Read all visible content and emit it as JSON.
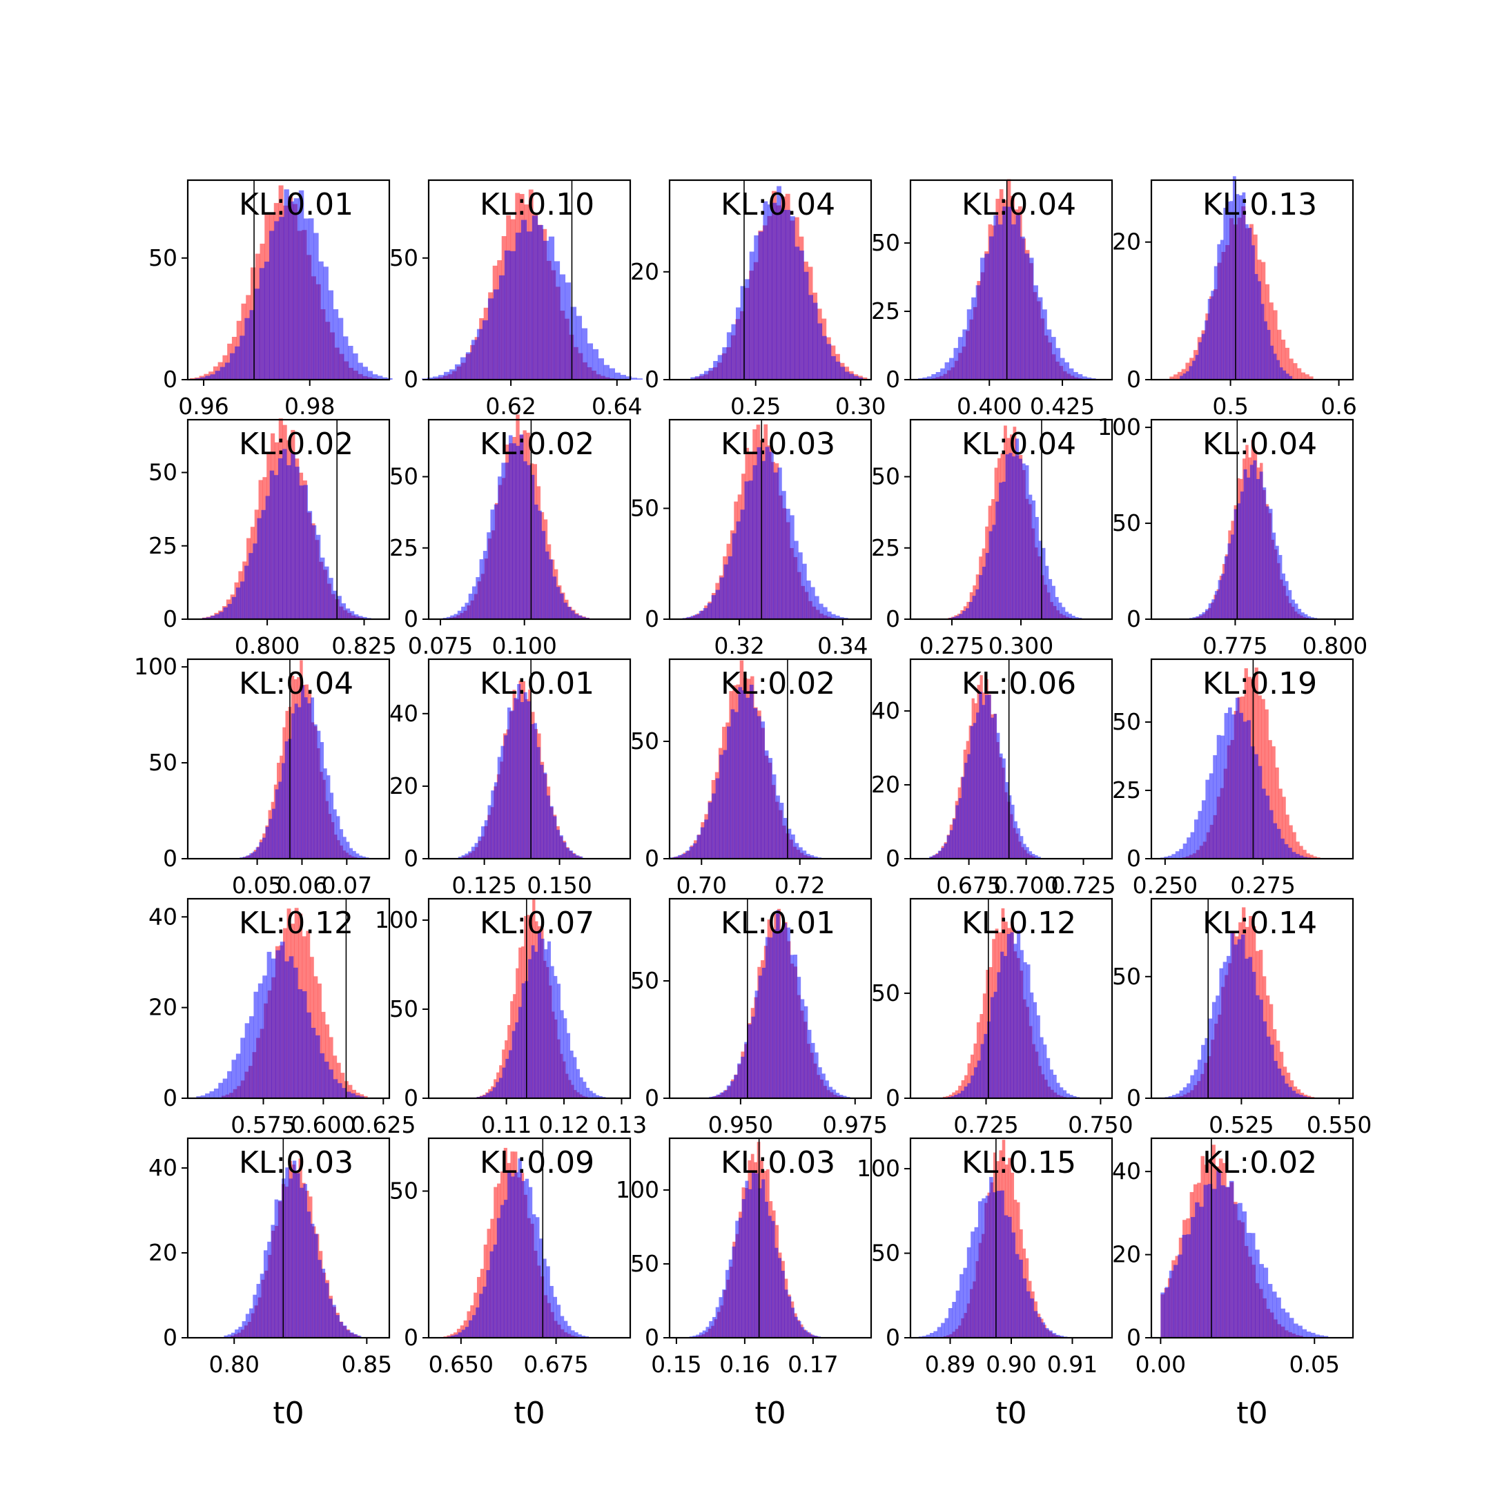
{
  "figure": {
    "colors": {
      "red": "#ff0000",
      "blue": "#0000ff",
      "overlap": "#7f3fbf",
      "vline": "#000000"
    },
    "xlabel": "t0"
  },
  "chart_data": [
    {
      "type": "histogram",
      "annotation": "KL:0.01",
      "x_range": [
        0.957,
        0.995
      ],
      "x_ticks": [
        0.96,
        0.98
      ],
      "x_tick_labels": [
        "0.96",
        "0.98"
      ],
      "y_range": [
        0,
        82
      ],
      "y_ticks": [
        0,
        50
      ],
      "y_tick_labels": [
        "0",
        "50"
      ],
      "vline": 0.9695,
      "series": [
        {
          "name": "red",
          "mean": 0.975,
          "sd": 0.0055,
          "peak": 76
        },
        {
          "name": "blue",
          "mean": 0.977,
          "sd": 0.0058,
          "peak": 76
        }
      ]
    },
    {
      "type": "histogram",
      "annotation": "KL:0.10",
      "x_range": [
        0.6045,
        0.6425
      ],
      "x_ticks": [
        0.62,
        0.64
      ],
      "x_tick_labels": [
        "0.62",
        "0.64"
      ],
      "y_range": [
        0,
        82
      ],
      "y_ticks": [
        0,
        50
      ],
      "y_tick_labels": [
        "0",
        "50"
      ],
      "vline": 0.6315,
      "series": [
        {
          "name": "red",
          "mean": 0.6225,
          "sd": 0.0053,
          "peak": 76
        },
        {
          "name": "blue",
          "mean": 0.624,
          "sd": 0.0065,
          "peak": 65
        }
      ]
    },
    {
      "type": "histogram",
      "annotation": "KL:0.04",
      "x_range": [
        0.209,
        0.305
      ],
      "x_ticks": [
        0.25,
        0.3
      ],
      "x_tick_labels": [
        "0.25",
        "0.30"
      ],
      "y_range": [
        0,
        37
      ],
      "y_ticks": [
        0,
        20
      ],
      "y_tick_labels": [
        "0",
        "20"
      ],
      "vline": 0.2445,
      "series": [
        {
          "name": "red",
          "mean": 0.262,
          "sd": 0.0135,
          "peak": 34
        },
        {
          "name": "blue",
          "mean": 0.26,
          "sd": 0.0135,
          "peak": 34
        }
      ]
    },
    {
      "type": "histogram",
      "annotation": "KL:0.04",
      "x_range": [
        0.373,
        0.442
      ],
      "x_ticks": [
        0.4,
        0.425
      ],
      "x_tick_labels": [
        "0.400",
        "0.425"
      ],
      "y_range": [
        0,
        73
      ],
      "y_ticks": [
        0,
        25,
        50
      ],
      "y_tick_labels": [
        "0",
        "25",
        "50"
      ],
      "vline": 0.406,
      "series": [
        {
          "name": "red",
          "mean": 0.406,
          "sd": 0.008,
          "peak": 70
        },
        {
          "name": "blue",
          "mean": 0.406,
          "sd": 0.0095,
          "peak": 62
        }
      ]
    },
    {
      "type": "histogram",
      "annotation": "KL:0.13",
      "x_range": [
        0.427,
        0.613
      ],
      "x_ticks": [
        0.5,
        0.6
      ],
      "x_tick_labels": [
        "0.5",
        "0.6"
      ],
      "y_range": [
        0,
        29
      ],
      "y_ticks": [
        0,
        20
      ],
      "y_tick_labels": [
        "0",
        "20"
      ],
      "vline": 0.5047,
      "series": [
        {
          "name": "red",
          "mean": 0.51,
          "sd": 0.023,
          "peak": 24
        },
        {
          "name": "blue",
          "mean": 0.505,
          "sd": 0.018,
          "peak": 28
        }
      ]
    },
    {
      "type": "histogram",
      "annotation": "KL:0.02",
      "x_range": [
        0.7795,
        0.8315
      ],
      "x_ticks": [
        0.8,
        0.825
      ],
      "x_tick_labels": [
        "0.800",
        "0.825"
      ],
      "y_range": [
        0,
        68
      ],
      "y_ticks": [
        0,
        25,
        50
      ],
      "y_tick_labels": [
        "0",
        "25",
        "50"
      ],
      "vline": 0.818,
      "series": [
        {
          "name": "red",
          "mean": 0.804,
          "sd": 0.0065,
          "peak": 66
        },
        {
          "name": "blue",
          "mean": 0.805,
          "sd": 0.0068,
          "peak": 56
        }
      ]
    },
    {
      "type": "histogram",
      "annotation": "KL:0.02",
      "x_range": [
        0.0715,
        0.1315
      ],
      "x_ticks": [
        0.075,
        0.1
      ],
      "x_tick_labels": [
        "0.075",
        "0.100"
      ],
      "y_range": [
        0,
        70
      ],
      "y_ticks": [
        0,
        25,
        50
      ],
      "y_tick_labels": [
        "0",
        "25",
        "50"
      ],
      "vline": 0.102,
      "series": [
        {
          "name": "red",
          "mean": 0.0985,
          "sd": 0.0065,
          "peak": 68
        },
        {
          "name": "blue",
          "mean": 0.0975,
          "sd": 0.0068,
          "peak": 63
        }
      ]
    },
    {
      "type": "histogram",
      "annotation": "KL:0.03",
      "x_range": [
        0.3065,
        0.3455
      ],
      "x_ticks": [
        0.32,
        0.34
      ],
      "x_tick_labels": [
        "0.32",
        "0.34"
      ],
      "y_range": [
        0,
        90
      ],
      "y_ticks": [
        0,
        50
      ],
      "y_tick_labels": [
        "0",
        "50"
      ],
      "vline": 0.3243,
      "series": [
        {
          "name": "red",
          "mean": 0.324,
          "sd": 0.0045,
          "peak": 86
        },
        {
          "name": "blue",
          "mean": 0.325,
          "sd": 0.005,
          "peak": 76
        }
      ]
    },
    {
      "type": "histogram",
      "annotation": "KL:0.04",
      "x_range": [
        0.26,
        0.333
      ],
      "x_ticks": [
        0.275,
        0.3
      ],
      "x_tick_labels": [
        "0.275",
        "0.300"
      ],
      "y_range": [
        0,
        70
      ],
      "y_ticks": [
        0,
        25,
        50
      ],
      "y_tick_labels": [
        "0",
        "25",
        "50"
      ],
      "vline": 0.3075,
      "series": [
        {
          "name": "red",
          "mean": 0.296,
          "sd": 0.007,
          "peak": 66
        },
        {
          "name": "blue",
          "mean": 0.298,
          "sd": 0.0075,
          "peak": 60
        }
      ]
    },
    {
      "type": "histogram",
      "annotation": "KL:0.04",
      "x_range": [
        0.754,
        0.8045
      ],
      "x_ticks": [
        0.775,
        0.8
      ],
      "x_tick_labels": [
        "0.775",
        "0.800"
      ],
      "y_range": [
        0,
        104
      ],
      "y_ticks": [
        0,
        50,
        100
      ],
      "y_tick_labels": [
        "0",
        "50",
        "100"
      ],
      "vline": 0.7755,
      "series": [
        {
          "name": "red",
          "mean": 0.779,
          "sd": 0.0045,
          "peak": 90
        },
        {
          "name": "blue",
          "mean": 0.7795,
          "sd": 0.005,
          "peak": 80
        }
      ]
    },
    {
      "type": "histogram",
      "annotation": "KL:0.04",
      "x_range": [
        0.0345,
        0.0795
      ],
      "x_ticks": [
        0.05,
        0.06,
        0.07
      ],
      "x_tick_labels": [
        "0.05",
        "0.06",
        "0.07"
      ],
      "y_range": [
        0,
        104
      ],
      "y_ticks": [
        0,
        50,
        100
      ],
      "y_tick_labels": [
        "0",
        "50",
        "100"
      ],
      "vline": 0.0573,
      "series": [
        {
          "name": "red",
          "mean": 0.0595,
          "sd": 0.004,
          "peak": 98
        },
        {
          "name": "blue",
          "mean": 0.0605,
          "sd": 0.0045,
          "peak": 86
        }
      ]
    },
    {
      "type": "histogram",
      "annotation": "KL:0.01",
      "x_range": [
        0.1065,
        0.1735
      ],
      "x_ticks": [
        0.125,
        0.15
      ],
      "x_tick_labels": [
        "0.125",
        "0.150"
      ],
      "y_range": [
        0,
        55
      ],
      "y_ticks": [
        0,
        20,
        40
      ],
      "y_tick_labels": [
        "0",
        "20",
        "40"
      ],
      "vline": 0.1405,
      "series": [
        {
          "name": "red",
          "mean": 0.1375,
          "sd": 0.0065,
          "peak": 48
        },
        {
          "name": "blue",
          "mean": 0.137,
          "sd": 0.0068,
          "peak": 46
        }
      ]
    },
    {
      "type": "histogram",
      "annotation": "KL:0.02",
      "x_range": [
        0.6935,
        0.7345
      ],
      "x_ticks": [
        0.7,
        0.72
      ],
      "x_tick_labels": [
        "0.70",
        "0.72"
      ],
      "y_range": [
        0,
        85
      ],
      "y_ticks": [
        0,
        50
      ],
      "y_tick_labels": [
        "0",
        "50"
      ],
      "vline": 0.7175,
      "series": [
        {
          "name": "red",
          "mean": 0.7085,
          "sd": 0.0045,
          "peak": 80
        },
        {
          "name": "blue",
          "mean": 0.709,
          "sd": 0.0048,
          "peak": 72
        }
      ]
    },
    {
      "type": "histogram",
      "annotation": "KL:0.06",
      "x_range": [
        0.6495,
        0.7375
      ],
      "x_ticks": [
        0.675,
        0.7,
        0.725
      ],
      "x_tick_labels": [
        "0.675",
        "0.700",
        "0.725"
      ],
      "y_range": [
        0,
        54
      ],
      "y_ticks": [
        0,
        20,
        40
      ],
      "y_tick_labels": [
        "0",
        "20",
        "40"
      ],
      "vline": 0.6925,
      "series": [
        {
          "name": "red",
          "mean": 0.681,
          "sd": 0.0075,
          "peak": 48
        },
        {
          "name": "blue",
          "mean": 0.682,
          "sd": 0.008,
          "peak": 44
        }
      ]
    },
    {
      "type": "histogram",
      "annotation": "KL:0.19",
      "x_range": [
        0.2465,
        0.298
      ],
      "x_ticks": [
        0.25,
        0.275
      ],
      "x_tick_labels": [
        "0.250",
        "0.275"
      ],
      "y_range": [
        0,
        73
      ],
      "y_ticks": [
        0,
        25,
        50
      ],
      "y_tick_labels": [
        "0",
        "25",
        "50"
      ],
      "vline": 0.2725,
      "series": [
        {
          "name": "red",
          "mean": 0.272,
          "sd": 0.0055,
          "peak": 68
        },
        {
          "name": "blue",
          "mean": 0.268,
          "sd": 0.006,
          "peak": 56
        }
      ]
    },
    {
      "type": "histogram",
      "annotation": "KL:0.12",
      "x_range": [
        0.5435,
        0.6275
      ],
      "x_ticks": [
        0.575,
        0.6,
        0.625
      ],
      "x_tick_labels": [
        "0.575",
        "0.600",
        "0.625"
      ],
      "y_range": [
        0,
        44
      ],
      "y_ticks": [
        0,
        20,
        40
      ],
      "y_tick_labels": [
        "0",
        "20",
        "40"
      ],
      "vline": 0.6095,
      "series": [
        {
          "name": "red",
          "mean": 0.588,
          "sd": 0.01,
          "peak": 41
        },
        {
          "name": "blue",
          "mean": 0.582,
          "sd": 0.0115,
          "peak": 33
        }
      ]
    },
    {
      "type": "histogram",
      "annotation": "KL:0.07",
      "x_range": [
        0.0965,
        0.1315
      ],
      "x_ticks": [
        0.11,
        0.12,
        0.13
      ],
      "x_tick_labels": [
        "0.11",
        "0.12",
        "0.13"
      ],
      "y_range": [
        0,
        112
      ],
      "y_ticks": [
        0,
        50,
        100
      ],
      "y_tick_labels": [
        "0",
        "50",
        "100"
      ],
      "vline": 0.1135,
      "series": [
        {
          "name": "red",
          "mean": 0.1145,
          "sd": 0.003,
          "peak": 106
        },
        {
          "name": "blue",
          "mean": 0.116,
          "sd": 0.0035,
          "peak": 90
        }
      ]
    },
    {
      "type": "histogram",
      "annotation": "KL:0.01",
      "x_range": [
        0.9345,
        0.9785
      ],
      "x_ticks": [
        0.95,
        0.975
      ],
      "x_tick_labels": [
        "0.950",
        "0.975"
      ],
      "y_range": [
        0,
        85
      ],
      "y_ticks": [
        0,
        50
      ],
      "y_tick_labels": [
        "0",
        "50"
      ],
      "vline": 0.9515,
      "series": [
        {
          "name": "red",
          "mean": 0.958,
          "sd": 0.0045,
          "peak": 78
        },
        {
          "name": "blue",
          "mean": 0.9585,
          "sd": 0.0048,
          "peak": 76
        }
      ]
    },
    {
      "type": "histogram",
      "annotation": "KL:0.12",
      "x_range": [
        0.7085,
        0.7525
      ],
      "x_ticks": [
        0.725,
        0.75
      ],
      "x_tick_labels": [
        "0.725",
        "0.750"
      ],
      "y_range": [
        0,
        95
      ],
      "y_ticks": [
        0,
        50
      ],
      "y_tick_labels": [
        "0",
        "50"
      ],
      "vline": 0.7255,
      "series": [
        {
          "name": "red",
          "mean": 0.729,
          "sd": 0.0042,
          "peak": 86
        },
        {
          "name": "blue",
          "mean": 0.731,
          "sd": 0.0045,
          "peak": 78
        }
      ]
    },
    {
      "type": "histogram",
      "annotation": "KL:0.14",
      "x_range": [
        0.502,
        0.5535
      ],
      "x_ticks": [
        0.525,
        0.55
      ],
      "x_tick_labels": [
        "0.525",
        "0.550"
      ],
      "y_range": [
        0,
        82
      ],
      "y_ticks": [
        0,
        50
      ],
      "y_tick_labels": [
        "0",
        "50"
      ],
      "vline": 0.5165,
      "series": [
        {
          "name": "red",
          "mean": 0.526,
          "sd": 0.0055,
          "peak": 75
        },
        {
          "name": "blue",
          "mean": 0.524,
          "sd": 0.0058,
          "peak": 66
        }
      ]
    },
    {
      "type": "histogram",
      "annotation": "KL:0.03",
      "x_range": [
        0.7825,
        0.8585
      ],
      "x_ticks": [
        0.8,
        0.85
      ],
      "x_tick_labels": [
        "0.80",
        "0.85"
      ],
      "y_range": [
        0,
        47
      ],
      "y_ticks": [
        0,
        20,
        40
      ],
      "y_tick_labels": [
        "0",
        "20",
        "40"
      ],
      "vline": 0.8185,
      "series": [
        {
          "name": "red",
          "mean": 0.823,
          "sd": 0.008,
          "peak": 41
        },
        {
          "name": "blue",
          "mean": 0.822,
          "sd": 0.0085,
          "peak": 40
        }
      ]
    },
    {
      "type": "histogram",
      "annotation": "KL:0.09",
      "x_range": [
        0.6415,
        0.6945
      ],
      "x_ticks": [
        0.65,
        0.675
      ],
      "x_tick_labels": [
        "0.650",
        "0.675"
      ],
      "y_range": [
        0,
        68
      ],
      "y_ticks": [
        0,
        50
      ],
      "y_tick_labels": [
        "0",
        "50"
      ],
      "vline": 0.6715,
      "series": [
        {
          "name": "red",
          "mean": 0.663,
          "sd": 0.0055,
          "peak": 63
        },
        {
          "name": "blue",
          "mean": 0.665,
          "sd": 0.0058,
          "peak": 58
        }
      ]
    },
    {
      "type": "histogram",
      "annotation": "KL:0.03",
      "x_range": [
        0.149,
        0.1785
      ],
      "x_ticks": [
        0.15,
        0.16,
        0.17
      ],
      "x_tick_labels": [
        "0.15",
        "0.16",
        "0.17"
      ],
      "y_range": [
        0,
        135
      ],
      "y_ticks": [
        0,
        50,
        100
      ],
      "y_tick_labels": [
        "0",
        "50",
        "100"
      ],
      "vline": 0.1621,
      "series": [
        {
          "name": "red",
          "mean": 0.1618,
          "sd": 0.0028,
          "peak": 126
        },
        {
          "name": "blue",
          "mean": 0.1615,
          "sd": 0.003,
          "peak": 110
        }
      ]
    },
    {
      "type": "histogram",
      "annotation": "KL:0.15",
      "x_range": [
        0.8835,
        0.9165
      ],
      "x_ticks": [
        0.89,
        0.9,
        0.91
      ],
      "x_tick_labels": [
        "0.89",
        "0.90",
        "0.91"
      ],
      "y_range": [
        0,
        118
      ],
      "y_ticks": [
        0,
        50,
        100
      ],
      "y_tick_labels": [
        "0",
        "50",
        "100"
      ],
      "vline": 0.8975,
      "series": [
        {
          "name": "red",
          "mean": 0.8985,
          "sd": 0.003,
          "peak": 112
        },
        {
          "name": "blue",
          "mean": 0.897,
          "sd": 0.0038,
          "peak": 90
        }
      ]
    },
    {
      "type": "histogram",
      "annotation": "KL:0.02",
      "x_range": [
        -0.003,
        0.0625
      ],
      "x_ticks": [
        0.0,
        0.05
      ],
      "x_tick_labels": [
        "0.00",
        "0.05"
      ],
      "y_range": [
        0,
        48
      ],
      "y_ticks": [
        0,
        20,
        40
      ],
      "y_tick_labels": [
        "0",
        "20",
        "40"
      ],
      "vline": 0.0165,
      "series": [
        {
          "name": "red",
          "mean": 0.017,
          "sd": 0.0095,
          "peak": 44,
          "clip_min": 0
        },
        {
          "name": "blue",
          "mean": 0.019,
          "sd": 0.0115,
          "peak": 38,
          "clip_min": 0
        }
      ]
    }
  ]
}
